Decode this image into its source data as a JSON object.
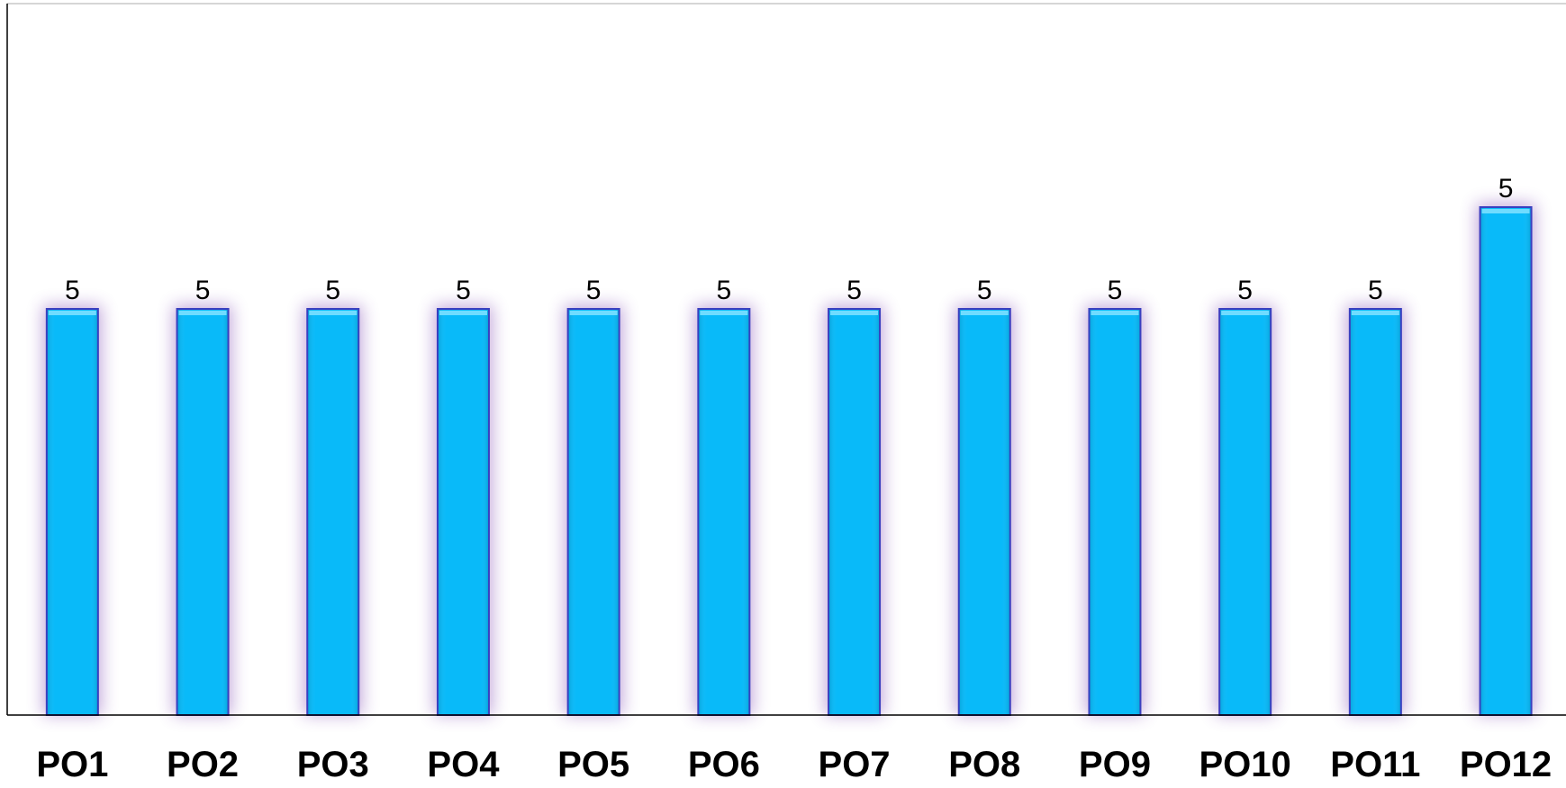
{
  "chart_data": {
    "type": "bar",
    "categories": [
      "PO1",
      "PO2",
      "PO3",
      "PO4",
      "PO5",
      "PO6",
      "PO7",
      "PO8",
      "PO9",
      "PO10",
      "PO11",
      "PO12"
    ],
    "values": [
      5,
      5,
      5,
      5,
      5,
      5,
      5,
      5,
      5,
      5,
      5,
      5
    ],
    "value_labels": [
      "5",
      "5",
      "5",
      "5",
      "5",
      "5",
      "5",
      "5",
      "5",
      "5",
      "5",
      "5"
    ],
    "title": "",
    "xlabel": "",
    "ylabel": "",
    "grid": false,
    "legend": "none",
    "colors": {
      "bar_fill": "#09baf9",
      "bar_highlight": "#6fdcff",
      "bar_border": "#3a3fbf",
      "bar_glow": "#7a3fb0",
      "axis": "#000000"
    }
  }
}
